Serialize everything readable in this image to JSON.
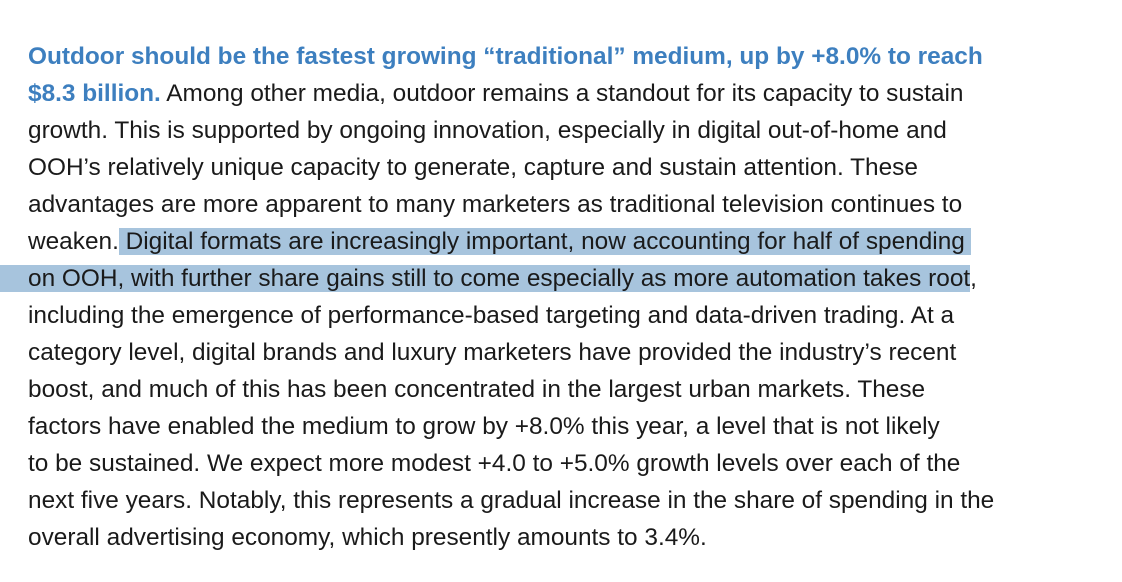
{
  "paragraph": {
    "lead_line1": "Outdoor should be the fastest growing “traditional” medium, up by +8.0% to reach",
    "lead_line2": "$8.3 billion.",
    "line2_rest": " Among other media, outdoor remains a standout for its capacity to sustain",
    "line3": "growth. This is supported by ongoing innovation, especially in digital out-of-home and",
    "line4": "OOH’s relatively unique capacity to generate, capture and sustain attention. These",
    "line5": "advantages are more apparent to many marketers as traditional television continues to",
    "line6_pre": "weaken.",
    "line6_highlight": " Digital formats are increasingly important, now accounting for half of spending",
    "line7_highlight": "on OOH, with further share gains still to come especially as more automation takes root",
    "line7_post": ",",
    "line8": "including the emergence of performance-based targeting and data-driven trading. At a",
    "line9": "category level, digital brands and luxury marketers have provided the industry’s recent",
    "line10": "boost, and much of this has been concentrated in the largest urban markets. These",
    "line11": "factors have enabled the medium to grow by +8.0% this year, a level that is not likely",
    "line12": "to be sustained. We expect more modest +4.0 to +5.0% growth levels over each of the",
    "line13": "next five years. Notably, this represents a gradual increase in the share of spending in the",
    "line14": "overall advertising economy, which presently amounts to 3.4%."
  },
  "colors": {
    "lead": "#3d7fbf",
    "text": "#1a1a1a",
    "highlight": "#a7c4dd"
  }
}
